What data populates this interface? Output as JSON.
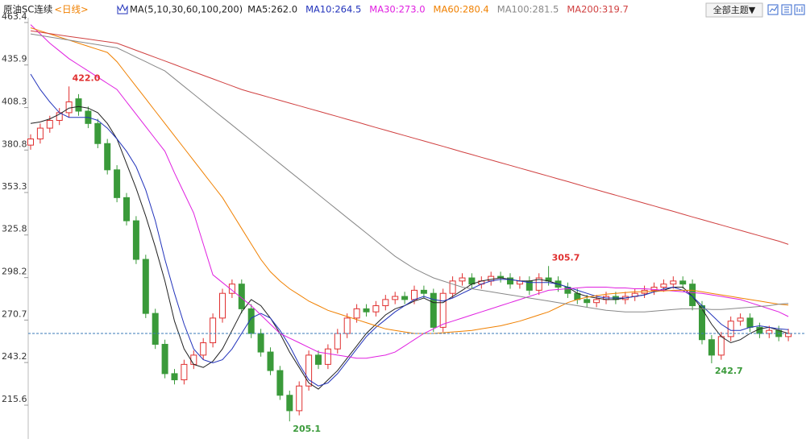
{
  "chart_data": {
    "type": "candlestick",
    "title": "原油SC连续",
    "period": "<日线>",
    "indicator": "MA(5,10,30,60,100,200)",
    "up_color": "#e03030",
    "down_color": "#3a9a3a",
    "period_color": "#f08000",
    "open": [
      384,
      388,
      395,
      400,
      405,
      414,
      406,
      398,
      385,
      368,
      350,
      335,
      310,
      275,
      255,
      236,
      232,
      242,
      248,
      256,
      272,
      288,
      294,
      278,
      262,
      250,
      238,
      222,
      212,
      228,
      248,
      242,
      252,
      262,
      272,
      278,
      276,
      280,
      284,
      286,
      284,
      290,
      288,
      266,
      288,
      296,
      298,
      294,
      296,
      299,
      298,
      294,
      296,
      290,
      298,
      296,
      292,
      288,
      284,
      282,
      284,
      286,
      284,
      286,
      288,
      290,
      292,
      294,
      296,
      294,
      280,
      258,
      248,
      260,
      270,
      272,
      266,
      262,
      264,
      260
    ],
    "high": [
      391,
      398,
      403,
      408,
      422.0,
      417,
      409,
      401,
      388,
      371,
      353,
      338,
      313,
      278,
      258,
      239,
      245,
      251,
      259,
      275,
      291,
      297,
      297,
      281,
      265,
      253,
      241,
      225,
      231,
      251,
      251,
      255,
      265,
      275,
      281,
      281,
      283,
      287,
      289,
      289,
      293,
      293,
      291,
      291,
      299,
      301,
      301,
      299,
      302,
      302,
      301,
      299,
      299,
      301,
      305.7,
      299,
      295,
      291,
      287,
      287,
      289,
      289,
      289,
      291,
      293,
      295,
      297,
      299,
      299,
      297,
      283,
      261,
      263,
      273,
      275,
      275,
      269,
      267,
      267,
      265
    ],
    "low": [
      381,
      385,
      392,
      397,
      402,
      403,
      395,
      382,
      365,
      347,
      332,
      307,
      272,
      252,
      233,
      229,
      229,
      239,
      245,
      253,
      269,
      285,
      275,
      259,
      247,
      235,
      219,
      205.1,
      209,
      225,
      239,
      239,
      249,
      259,
      269,
      273,
      273,
      277,
      281,
      281,
      281,
      285,
      263,
      263,
      285,
      293,
      291,
      291,
      293,
      295,
      291,
      291,
      287,
      287,
      293,
      289,
      285,
      281,
      279,
      279,
      281,
      281,
      281,
      283,
      285,
      287,
      289,
      291,
      291,
      277,
      255,
      242.7,
      245,
      257,
      267,
      263,
      259,
      259,
      257,
      257
    ],
    "close": [
      388,
      395,
      400,
      405,
      412,
      406,
      398,
      385,
      368,
      350,
      335,
      310,
      275,
      255,
      236,
      232,
      242,
      248,
      256,
      272,
      288,
      294,
      278,
      262,
      250,
      238,
      222,
      212,
      228,
      248,
      242,
      252,
      262,
      272,
      278,
      276,
      280,
      284,
      286,
      284,
      290,
      288,
      266,
      288,
      296,
      298,
      294,
      296,
      299,
      298,
      294,
      296,
      290,
      298,
      296,
      292,
      288,
      284,
      282,
      284,
      286,
      284,
      286,
      288,
      290,
      292,
      294,
      296,
      294,
      280,
      258,
      248,
      260,
      270,
      272,
      266,
      262,
      264,
      260,
      262
    ],
    "series": [
      {
        "name": "MA5:262.0",
        "color": "#222222",
        "values": [
          398,
          399,
          401,
          404,
          408,
          409,
          408,
          405,
          398,
          388,
          372,
          356,
          338,
          318,
          296,
          270,
          252,
          242,
          240,
          244,
          252,
          264,
          276,
          284,
          280,
          272,
          262,
          250,
          240,
          230,
          226,
          232,
          238,
          246,
          254,
          262,
          268,
          274,
          278,
          280,
          283,
          285,
          282,
          282,
          286,
          290,
          294,
          296,
          297,
          298,
          297,
          296,
          296,
          297,
          296,
          294,
          292,
          288,
          286,
          285,
          284,
          284,
          285,
          286,
          287,
          289,
          290,
          292,
          292,
          286,
          278,
          268,
          260,
          256,
          258,
          262,
          265,
          266,
          264,
          262
        ]
      },
      {
        "name": "MA10:264.5",
        "color": "#2233bb",
        "values": [
          430,
          420,
          412,
          405,
          402,
          402,
          402,
          400,
          395,
          388,
          380,
          370,
          355,
          335,
          310,
          288,
          268,
          252,
          245,
          243,
          245,
          252,
          262,
          272,
          275,
          272,
          264,
          254,
          242,
          232,
          228,
          230,
          236,
          244,
          252,
          260,
          266,
          271,
          276,
          280,
          284,
          286,
          284,
          283,
          285,
          288,
          291,
          294,
          296,
          297,
          297,
          296,
          295,
          295,
          295,
          294,
          292,
          290,
          288,
          286,
          285,
          285,
          285,
          286,
          287,
          289,
          291,
          292,
          290,
          286,
          280,
          274,
          268,
          264,
          264,
          266,
          267,
          266,
          265,
          264.5
        ]
      },
      {
        "name": "MA30:273.0",
        "color": "#e020e0",
        "values": [
          462,
          456,
          450,
          445,
          440,
          436,
          432,
          428,
          424,
          420,
          412,
          404,
          396,
          388,
          380,
          366,
          353,
          340,
          320,
          300,
          295,
          290,
          285,
          280,
          274,
          268,
          262,
          259,
          256,
          253,
          250,
          249,
          248,
          247,
          246,
          246,
          247,
          248,
          250,
          254,
          258,
          262,
          265,
          268,
          270,
          272,
          274,
          276,
          278,
          280,
          282,
          284,
          286,
          288,
          290,
          290.5,
          291,
          291.5,
          292,
          292,
          292,
          291.5,
          291.5,
          291,
          291,
          290.5,
          290,
          289.5,
          289,
          288.5,
          288,
          287,
          286,
          285,
          284,
          282,
          280,
          278,
          276,
          273
        ]
      },
      {
        "name": "MA60:280.4",
        "color": "#f08000",
        "values": [
          460,
          458,
          456,
          454,
          452,
          450,
          448,
          446,
          444,
          438,
          430,
          422,
          414,
          406,
          398,
          390,
          382,
          374,
          366,
          358,
          350,
          340,
          330,
          320,
          310,
          302,
          296,
          291,
          287,
          283,
          280,
          277,
          275,
          273,
          271,
          269,
          267,
          265,
          264,
          263,
          262,
          262,
          262,
          262.5,
          263,
          263.5,
          264,
          265,
          266,
          267,
          268.5,
          270,
          272,
          274,
          276,
          279,
          282,
          284,
          285.5,
          286.5,
          287.5,
          288,
          288.5,
          289,
          289,
          289.5,
          289.5,
          290,
          290,
          290,
          289,
          288,
          287,
          286,
          285,
          284,
          283,
          282,
          281,
          280.4
        ]
      },
      {
        "name": "MA100:281.5",
        "color": "#888888",
        "values": [
          456,
          455,
          454,
          453,
          452,
          451,
          450,
          449,
          448,
          447,
          444,
          441,
          438,
          435,
          432,
          427,
          422,
          417,
          412,
          407,
          402,
          397,
          392,
          387,
          382,
          377,
          372,
          367,
          362,
          357,
          352,
          347,
          342,
          337,
          332,
          327,
          322,
          317,
          312,
          308,
          304,
          301,
          298,
          296,
          294,
          292,
          291,
          290,
          289,
          288,
          287,
          286,
          285,
          284,
          283,
          282,
          281,
          280,
          279,
          278,
          277,
          276.5,
          276,
          276,
          276,
          276.5,
          277,
          277.5,
          278,
          278,
          278,
          277.5,
          277.5,
          278,
          278.5,
          279,
          279.5,
          280,
          281,
          281.5
        ]
      },
      {
        "name": "MA200:319.7",
        "color": "#d04040",
        "values": [
          458,
          457.1,
          456.2,
          455.3,
          454.4,
          453.5,
          452.7,
          451.8,
          450.9,
          450,
          447.7,
          445.4,
          443.1,
          440.8,
          438.5,
          436.2,
          433.8,
          431.5,
          429.2,
          426.9,
          424.6,
          422.3,
          420,
          418.2,
          416.5,
          414.7,
          413,
          411.2,
          409.5,
          407.7,
          406,
          404.2,
          402.5,
          400.7,
          399,
          397.2,
          395.4,
          393.7,
          391.9,
          390.2,
          388.4,
          386.7,
          384.9,
          383.2,
          381.4,
          379.6,
          377.9,
          376.1,
          374.4,
          372.6,
          370.9,
          369.1,
          367.4,
          365.6,
          363.9,
          362.1,
          360.4,
          358.6,
          356.8,
          355.1,
          353.3,
          351.6,
          349.8,
          348.1,
          346.3,
          344.6,
          342.8,
          341.1,
          339.3,
          337.5,
          335.8,
          334,
          332.3,
          330.5,
          328.8,
          327,
          325.3,
          323.5,
          321.8,
          319.7
        ]
      }
    ],
    "ylim": [
      196.3,
      466.5
    ],
    "yticks": [
      463.4,
      435.9,
      408.3,
      380.8,
      353.3,
      325.8,
      298.2,
      270.7,
      243.2,
      215.6
    ],
    "annotations": [
      "422.0",
      "205.1",
      "305.7",
      "242.7"
    ]
  },
  "toolbar": {
    "theme_button": "全部主题▼"
  }
}
